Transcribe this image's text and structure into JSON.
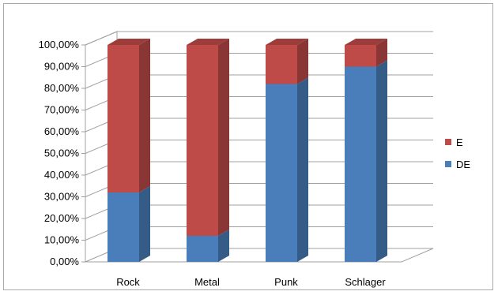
{
  "chart_data": {
    "type": "bar",
    "stacked": true,
    "percent": true,
    "three_d": true,
    "categories": [
      "Rock",
      "Metal",
      "Punk",
      "Schlager"
    ],
    "series": [
      {
        "name": "DE",
        "color": "#4a7ebb",
        "values": [
          32,
          12,
          82,
          90
        ]
      },
      {
        "name": "E",
        "color": "#be4b48",
        "values": [
          68,
          88,
          18,
          10
        ]
      }
    ],
    "ylim": [
      0,
      100
    ],
    "yticks": [
      "0,00%",
      "10,00%",
      "20,00%",
      "30,00%",
      "40,00%",
      "50,00%",
      "60,00%",
      "70,00%",
      "80,00%",
      "90,00%",
      "100,00%"
    ],
    "legend": {
      "position": "right",
      "entries": [
        "E",
        "DE"
      ]
    },
    "grid": true,
    "title": "",
    "xlabel": "",
    "ylabel": ""
  }
}
